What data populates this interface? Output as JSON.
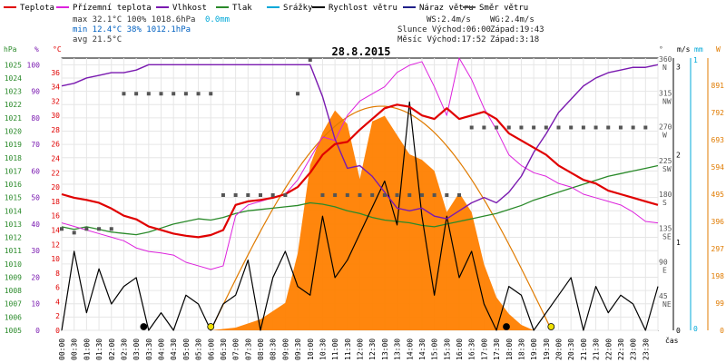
{
  "legend": [
    {
      "label": "Teplota",
      "color": "#e00000"
    },
    {
      "label": "Přízemní teplota",
      "color": "#dd22dd"
    },
    {
      "label": "Vlhkost",
      "color": "#7a1ab0"
    },
    {
      "label": "Tlak",
      "color": "#2a8a2a"
    },
    {
      "label": "Srážky",
      "color": "#00a8d8"
    },
    {
      "label": "Rychlost větru",
      "color": "#000000"
    },
    {
      "label": "Náraz větru",
      "color": "#20208a"
    },
    {
      "label": "Směr větru",
      "color": "#555555"
    }
  ],
  "stats": {
    "row1": "max 32.1°C 100%  1018.6hPa",
    "row1_rain": "0.0mm",
    "row2": "min 12.4°C  38%  1012.1hPa",
    "row3": "avg 21.5°C"
  },
  "wind_info": {
    "ws": "WS:2.4m/s",
    "wg": "WG:2.4m/s",
    "sun": "Slunce Východ:06:00",
    "sun_set": "Západ:19:43",
    "moon": "Měsíc  Východ:17:52",
    "moon_set": "Západ:3:18"
  },
  "chart_data": {
    "type": "line",
    "title": "28.8.2015",
    "xlabel": "čas",
    "x_ticks": [
      "00:00",
      "00:30",
      "01:00",
      "01:30",
      "02:00",
      "02:30",
      "03:00",
      "03:30",
      "04:00",
      "04:30",
      "05:00",
      "05:30",
      "06:00",
      "06:30",
      "07:00",
      "07:30",
      "08:00",
      "08:30",
      "09:00",
      "09:30",
      "10:00",
      "10:30",
      "11:00",
      "11:30",
      "12:00",
      "12:30",
      "13:00",
      "13:30",
      "14:00",
      "14:30",
      "15:00",
      "15:30",
      "16:00",
      "16:30",
      "17:00",
      "17:30",
      "18:00",
      "18:30",
      "19:00",
      "19:30",
      "20:00",
      "20:30",
      "21:00",
      "21:30",
      "22:00",
      "22:30",
      "23:00",
      "23:30"
    ],
    "axes": {
      "hpa": {
        "label": "hPa",
        "ticks": [
          "1005",
          "1006",
          "1007",
          "1008",
          "1009",
          "1010",
          "1011",
          "1012",
          "1013",
          "1014",
          "1015",
          "1016",
          "1017",
          "1018",
          "1019",
          "1020",
          "1021",
          "1022",
          "1023",
          "1024",
          "1025"
        ],
        "ylim": [
          1005,
          1025.5
        ]
      },
      "pct": {
        "label": "%",
        "ticks": [
          "0",
          "10",
          "20",
          "30",
          "40",
          "50",
          "60",
          "70",
          "80",
          "90",
          "100"
        ],
        "ylim": [
          0,
          102.5
        ]
      },
      "temp": {
        "label": "°C",
        "ticks": [
          "0",
          "2",
          "4",
          "6",
          "8",
          "10",
          "12",
          "14",
          "16",
          "18",
          "20",
          "22",
          "24",
          "26",
          "28",
          "30",
          "32",
          "34",
          "36"
        ],
        "ylim": [
          0,
          38
        ]
      },
      "dir": {
        "label": "°",
        "ticks": [
          "0",
          "45",
          "90",
          "135",
          "180",
          "225",
          "270",
          "315",
          "360"
        ],
        "names": [
          "",
          "NE",
          "E",
          "SE",
          "S",
          "SW",
          "W",
          "NW",
          "N"
        ]
      },
      "ms": {
        "label": "m/s",
        "ticks": [
          "0",
          "1",
          "2",
          "3"
        ]
      },
      "mm": {
        "label": "mm",
        "ticks": [
          "0",
          "1"
        ]
      },
      "w": {
        "label": "W",
        "ticks": [
          "0",
          "99",
          "198",
          "297",
          "396",
          "495",
          "594",
          "693",
          "792",
          "891"
        ],
        "ylim": [
          0,
          990
        ]
      }
    },
    "series": [
      {
        "name": "Teplota",
        "unit": "°C",
        "x": [
          0,
          0.5,
          1,
          1.5,
          2,
          2.5,
          3,
          3.5,
          4,
          4.5,
          5,
          5.5,
          6,
          6.5,
          7,
          7.5,
          8,
          8.5,
          9,
          9.5,
          10,
          10.5,
          11,
          11.5,
          12,
          12.5,
          13,
          13.5,
          14,
          14.5,
          15,
          15.5,
          16,
          16.5,
          17,
          17.5,
          18,
          18.5,
          19,
          19.5,
          20,
          20.5,
          21,
          21.5,
          22,
          22.5,
          23,
          23.5,
          24
        ],
        "values": [
          19,
          18.5,
          18.2,
          17.8,
          17,
          16,
          15.5,
          14.5,
          14,
          13.5,
          13.2,
          13,
          13.3,
          14,
          17.5,
          18,
          18.2,
          18.5,
          19,
          20,
          22,
          24.5,
          26,
          26.3,
          28,
          29.5,
          31,
          31.5,
          31.2,
          30,
          29.5,
          31,
          29.5,
          30,
          30.5,
          29.5,
          27.5,
          26.5,
          25.5,
          24.5,
          23,
          22,
          21,
          20.5,
          19.5,
          19,
          18.5,
          18,
          17.5
        ]
      },
      {
        "name": "Přízemní teplota",
        "unit": "°C",
        "x": [
          0,
          0.5,
          1,
          1.5,
          2,
          2.5,
          3,
          3.5,
          4,
          4.5,
          5,
          5.5,
          6,
          6.5,
          7,
          7.5,
          8,
          8.5,
          9,
          9.5,
          10,
          10.5,
          11,
          11.5,
          12,
          12.5,
          13,
          13.5,
          14,
          14.5,
          15,
          15.5,
          16,
          16.5,
          17,
          17.5,
          18,
          18.5,
          19,
          19.5,
          20,
          20.5,
          21,
          21.5,
          22,
          22.5,
          23,
          23.5,
          24
        ],
        "values": [
          15,
          14.5,
          14,
          13.5,
          13,
          12.5,
          11.5,
          11,
          10.8,
          10.5,
          9.5,
          9,
          8.5,
          9,
          16,
          17.5,
          18,
          18.5,
          19,
          21,
          24,
          27,
          26.5,
          30,
          32,
          33,
          34,
          36,
          37,
          37.5,
          34,
          30,
          38,
          35,
          31,
          28,
          24.5,
          23,
          22,
          21.5,
          20.5,
          20,
          19,
          18.5,
          18,
          17.5,
          16.5,
          15.2,
          15
        ]
      },
      {
        "name": "Vlhkost",
        "unit": "%",
        "x": [
          0,
          0.5,
          1,
          1.5,
          2,
          2.5,
          3,
          3.5,
          4,
          4.5,
          5,
          5.5,
          6,
          6.5,
          7,
          7.5,
          8,
          8.5,
          9,
          9.5,
          10,
          10.5,
          11,
          11.5,
          12,
          12.5,
          13,
          13.5,
          14,
          14.5,
          15,
          15.5,
          16,
          16.5,
          17,
          17.5,
          18,
          18.5,
          19,
          19.5,
          20,
          20.5,
          21,
          21.5,
          22,
          22.5,
          23,
          23.5,
          24
        ],
        "values": [
          92,
          93,
          95,
          96,
          97,
          97,
          98,
          100,
          100,
          100,
          100,
          100,
          100,
          100,
          100,
          100,
          100,
          100,
          100,
          100,
          100,
          88,
          72,
          61,
          62,
          58,
          52,
          46,
          45,
          46,
          43,
          42,
          45,
          48,
          50,
          48,
          52,
          58,
          67,
          74,
          82,
          87,
          92,
          95,
          97,
          98,
          99,
          99,
          100
        ]
      },
      {
        "name": "Tlak",
        "unit": "hPa",
        "x": [
          0,
          0.5,
          1,
          1.5,
          2,
          2.5,
          3,
          3.5,
          4,
          4.5,
          5,
          5.5,
          6,
          6.5,
          7,
          7.5,
          8,
          8.5,
          9,
          9.5,
          10,
          10.5,
          11,
          11.5,
          12,
          12.5,
          13,
          13.5,
          14,
          14.5,
          15,
          15.5,
          16,
          16.5,
          17,
          17.5,
          18,
          18.5,
          19,
          19.5,
          20,
          20.5,
          21,
          21.5,
          22,
          22.5,
          23,
          23.5,
          24
        ],
        "values": [
          1012.8,
          1012.6,
          1012.8,
          1012.6,
          1012.4,
          1012.3,
          1012.2,
          1012.4,
          1012.7,
          1013,
          1013.2,
          1013.4,
          1013.3,
          1013.5,
          1013.8,
          1014,
          1014.1,
          1014.2,
          1014.3,
          1014.4,
          1014.6,
          1014.5,
          1014.3,
          1014,
          1013.8,
          1013.5,
          1013.3,
          1013.2,
          1013.1,
          1012.9,
          1012.8,
          1013,
          1013.2,
          1013.4,
          1013.6,
          1013.8,
          1014.1,
          1014.4,
          1014.8,
          1015.1,
          1015.4,
          1015.7,
          1016,
          1016.3,
          1016.6,
          1016.8,
          1017,
          1017.2,
          1017.4
        ]
      },
      {
        "name": "Srážky",
        "unit": "mm",
        "x": [
          0,
          24
        ],
        "values": [
          0,
          0
        ]
      },
      {
        "name": "Rychlost větru",
        "unit": "m/s",
        "x": [
          0,
          0.5,
          1,
          1.5,
          2,
          2.5,
          3,
          3.5,
          4,
          4.5,
          5,
          5.5,
          6,
          6.5,
          7,
          7.5,
          8,
          8.5,
          9,
          9.5,
          10,
          10.5,
          11,
          11.5,
          12,
          12.5,
          13,
          13.5,
          14,
          14.5,
          15,
          15.5,
          16,
          16.5,
          17,
          17.5,
          18,
          18.5,
          19,
          19.5,
          20,
          20.5,
          21,
          21.5,
          22,
          22.5,
          23,
          23.5,
          24
        ],
        "values": [
          0,
          0.9,
          0.2,
          0.7,
          0.3,
          0.5,
          0.6,
          0,
          0.2,
          0,
          0.4,
          0.3,
          0,
          0.3,
          0.4,
          0.8,
          0,
          0.6,
          0.9,
          0.5,
          0.4,
          1.3,
          0.6,
          0.8,
          1.1,
          1.4,
          1.7,
          1.2,
          2.6,
          1.3,
          0.4,
          1.3,
          0.6,
          0.9,
          0.3,
          0,
          0.5,
          0.4,
          0,
          0.2,
          0.4,
          0.6,
          0,
          0.5,
          0.2,
          0.4,
          0.3,
          0,
          0.5
        ]
      },
      {
        "name": "Náraz větru",
        "unit": "m/s",
        "x": [
          0,
          24
        ],
        "values": [
          0,
          0
        ]
      },
      {
        "name": "Směr větru",
        "unit": "°",
        "type": "scatter",
        "x": [
          0,
          0.5,
          1,
          1.5,
          2,
          2.5,
          3,
          3.5,
          4,
          4.5,
          5,
          5.5,
          6,
          6.5,
          7,
          7.5,
          8,
          8.5,
          9,
          9.5,
          10,
          10.5,
          11,
          11.5,
          12,
          12.5,
          13,
          13.5,
          14,
          14.5,
          15,
          15.5,
          16,
          16.5,
          17,
          17.5,
          18,
          18.5,
          19,
          19.5,
          20,
          20.5,
          21,
          21.5,
          22,
          22.5,
          23,
          23.5
        ],
        "values": [
          135,
          130,
          135,
          135,
          135,
          315,
          315,
          315,
          315,
          315,
          315,
          315,
          315,
          180,
          180,
          180,
          180,
          180,
          180,
          315,
          360,
          180,
          180,
          180,
          180,
          180,
          180,
          180,
          180,
          180,
          180,
          180,
          180,
          270,
          270,
          270,
          270,
          270,
          270,
          270,
          270,
          270,
          270,
          270,
          270,
          270,
          270,
          270
        ]
      },
      {
        "name": "Sluneční záření",
        "unit": "W",
        "type": "area",
        "x": [
          6,
          7,
          8,
          9,
          9.5,
          10,
          10.5,
          11,
          11.5,
          12,
          12.5,
          13,
          13.5,
          14,
          14.5,
          15,
          15.5,
          16,
          16.5,
          17,
          17.5,
          18,
          18.5,
          19
        ],
        "values": [
          0,
          10,
          40,
          100,
          280,
          600,
          720,
          800,
          750,
          550,
          760,
          780,
          710,
          640,
          620,
          580,
          430,
          500,
          430,
          240,
          120,
          60,
          20,
          0
        ]
      }
    ],
    "markers": [
      {
        "name": "Východ slunce",
        "x": 6.0
      },
      {
        "name": "Západ slunce",
        "x": 19.7
      },
      {
        "name": "Východ měsíce",
        "x": 17.9
      },
      {
        "name": "Západ měsíce",
        "x": 3.3
      }
    ],
    "grid": true
  }
}
